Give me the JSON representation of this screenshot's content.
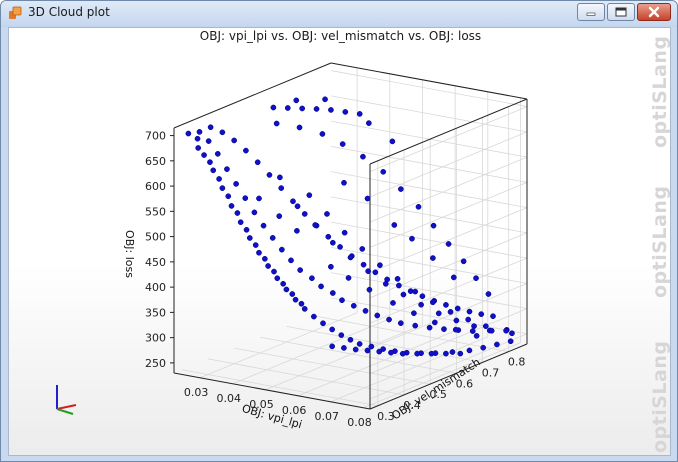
{
  "window": {
    "title": "3D Cloud plot",
    "accent_color": "#c9daf0",
    "icon": "app-orange-icon"
  },
  "controls": {
    "minimize_icon": "minimize-icon",
    "maximize_icon": "maximize-icon",
    "close_icon": "close-icon"
  },
  "watermark": "optiSLang",
  "chart_data": {
    "type": "scatter3d",
    "title": "OBJ: vpi_lpi vs. OBJ: vel_mismatch vs. OBJ: loss",
    "xlabel": "OBJ: vpi_lpi",
    "ylabel": "OBJ: vel_mismatch",
    "zlabel": "OBJ: loss",
    "x_ticks": [
      "0.03",
      "0.04",
      "0.05",
      "0.06",
      "0.07",
      "0.08"
    ],
    "y_ticks": [
      "0.3",
      "0.4",
      "0.5",
      "0.6",
      "0.7",
      "0.8"
    ],
    "z_ticks": [
      "250",
      "300",
      "350",
      "400",
      "450",
      "500",
      "550",
      "600",
      "650",
      "700"
    ],
    "xlim": [
      0.022,
      0.082
    ],
    "ylim": [
      0.27,
      0.87
    ],
    "zlim": [
      230,
      715
    ],
    "grid": true,
    "marker_color": "#1010c8",
    "points": [
      [
        0.024,
        0.3,
        700
      ],
      [
        0.026,
        0.31,
        690
      ],
      [
        0.027,
        0.3,
        675
      ],
      [
        0.028,
        0.31,
        660
      ],
      [
        0.029,
        0.32,
        645
      ],
      [
        0.03,
        0.32,
        630
      ],
      [
        0.031,
        0.33,
        612
      ],
      [
        0.032,
        0.33,
        595
      ],
      [
        0.033,
        0.34,
        578
      ],
      [
        0.034,
        0.34,
        560
      ],
      [
        0.035,
        0.35,
        545
      ],
      [
        0.036,
        0.35,
        528
      ],
      [
        0.037,
        0.36,
        512
      ],
      [
        0.038,
        0.36,
        497
      ],
      [
        0.039,
        0.37,
        482
      ],
      [
        0.04,
        0.37,
        468
      ],
      [
        0.041,
        0.38,
        455
      ],
      [
        0.042,
        0.38,
        442
      ],
      [
        0.043,
        0.39,
        430
      ],
      [
        0.044,
        0.39,
        418
      ],
      [
        0.045,
        0.4,
        406
      ],
      [
        0.046,
        0.4,
        396
      ],
      [
        0.047,
        0.41,
        386
      ],
      [
        0.048,
        0.41,
        376
      ],
      [
        0.049,
        0.42,
        367
      ],
      [
        0.05,
        0.42,
        358
      ],
      [
        0.052,
        0.43,
        343
      ],
      [
        0.054,
        0.44,
        330
      ],
      [
        0.056,
        0.45,
        318
      ],
      [
        0.058,
        0.46,
        307
      ],
      [
        0.06,
        0.47,
        298
      ],
      [
        0.062,
        0.48,
        290
      ],
      [
        0.064,
        0.5,
        283
      ],
      [
        0.066,
        0.52,
        276
      ],
      [
        0.068,
        0.54,
        270
      ],
      [
        0.07,
        0.56,
        265
      ],
      [
        0.072,
        0.59,
        260
      ],
      [
        0.074,
        0.62,
        256
      ],
      [
        0.076,
        0.66,
        252
      ],
      [
        0.078,
        0.7,
        249
      ],
      [
        0.079,
        0.74,
        247
      ],
      [
        0.08,
        0.78,
        246
      ],
      [
        0.081,
        0.82,
        245
      ],
      [
        0.025,
        0.33,
        698
      ],
      [
        0.027,
        0.34,
        680
      ],
      [
        0.029,
        0.35,
        655
      ],
      [
        0.031,
        0.36,
        625
      ],
      [
        0.033,
        0.37,
        596
      ],
      [
        0.035,
        0.38,
        568
      ],
      [
        0.037,
        0.39,
        540
      ],
      [
        0.039,
        0.4,
        514
      ],
      [
        0.041,
        0.41,
        490
      ],
      [
        0.043,
        0.42,
        467
      ],
      [
        0.045,
        0.43,
        446
      ],
      [
        0.047,
        0.44,
        427
      ],
      [
        0.049,
        0.46,
        409
      ],
      [
        0.051,
        0.47,
        393
      ],
      [
        0.053,
        0.49,
        378
      ],
      [
        0.055,
        0.5,
        364
      ],
      [
        0.057,
        0.52,
        351
      ],
      [
        0.059,
        0.54,
        339
      ],
      [
        0.061,
        0.56,
        328
      ],
      [
        0.063,
        0.58,
        318
      ],
      [
        0.065,
        0.6,
        309
      ],
      [
        0.067,
        0.63,
        300
      ],
      [
        0.069,
        0.66,
        292
      ],
      [
        0.071,
        0.69,
        285
      ],
      [
        0.073,
        0.72,
        279
      ],
      [
        0.075,
        0.75,
        273
      ],
      [
        0.077,
        0.79,
        268
      ],
      [
        0.079,
        0.83,
        263
      ],
      [
        0.026,
        0.36,
        702
      ],
      [
        0.028,
        0.38,
        690
      ],
      [
        0.03,
        0.4,
        672
      ],
      [
        0.032,
        0.42,
        650
      ],
      [
        0.034,
        0.44,
        625
      ],
      [
        0.036,
        0.46,
        598
      ],
      [
        0.038,
        0.48,
        570
      ],
      [
        0.04,
        0.5,
        542
      ],
      [
        0.042,
        0.52,
        515
      ],
      [
        0.044,
        0.54,
        490
      ],
      [
        0.046,
        0.56,
        466
      ],
      [
        0.048,
        0.58,
        444
      ],
      [
        0.05,
        0.6,
        424
      ],
      [
        0.052,
        0.62,
        405
      ],
      [
        0.054,
        0.64,
        388
      ],
      [
        0.056,
        0.66,
        372
      ],
      [
        0.058,
        0.68,
        358
      ],
      [
        0.06,
        0.7,
        345
      ],
      [
        0.062,
        0.72,
        333
      ],
      [
        0.064,
        0.74,
        322
      ],
      [
        0.066,
        0.76,
        312
      ],
      [
        0.068,
        0.78,
        303
      ],
      [
        0.07,
        0.8,
        295
      ],
      [
        0.072,
        0.82,
        288
      ],
      [
        0.074,
        0.84,
        282
      ],
      [
        0.03,
        0.55,
        705
      ],
      [
        0.032,
        0.58,
        700
      ],
      [
        0.034,
        0.61,
        695
      ],
      [
        0.036,
        0.64,
        690
      ],
      [
        0.038,
        0.67,
        684
      ],
      [
        0.04,
        0.7,
        676
      ],
      [
        0.042,
        0.73,
        668
      ],
      [
        0.035,
        0.5,
        690
      ],
      [
        0.038,
        0.55,
        675
      ],
      [
        0.041,
        0.6,
        655
      ],
      [
        0.044,
        0.64,
        630
      ],
      [
        0.047,
        0.68,
        600
      ],
      [
        0.05,
        0.72,
        565
      ],
      [
        0.053,
        0.75,
        528
      ],
      [
        0.056,
        0.78,
        490
      ],
      [
        0.059,
        0.8,
        452
      ],
      [
        0.062,
        0.82,
        415
      ],
      [
        0.065,
        0.84,
        380
      ],
      [
        0.068,
        0.85,
        348
      ],
      [
        0.071,
        0.86,
        318
      ],
      [
        0.045,
        0.5,
        560
      ],
      [
        0.048,
        0.53,
        520
      ],
      [
        0.051,
        0.56,
        480
      ],
      [
        0.054,
        0.59,
        445
      ],
      [
        0.057,
        0.62,
        410
      ],
      [
        0.06,
        0.65,
        380
      ],
      [
        0.063,
        0.68,
        352
      ],
      [
        0.066,
        0.71,
        328
      ],
      [
        0.069,
        0.74,
        306
      ],
      [
        0.072,
        0.77,
        288
      ],
      [
        0.075,
        0.8,
        272
      ],
      [
        0.078,
        0.84,
        258
      ],
      [
        0.04,
        0.45,
        600
      ],
      [
        0.043,
        0.48,
        540
      ],
      [
        0.046,
        0.51,
        500
      ],
      [
        0.049,
        0.54,
        462
      ],
      [
        0.052,
        0.57,
        430
      ],
      [
        0.055,
        0.6,
        400
      ],
      [
        0.058,
        0.63,
        372
      ],
      [
        0.061,
        0.66,
        348
      ],
      [
        0.064,
        0.69,
        325
      ],
      [
        0.067,
        0.72,
        305
      ],
      [
        0.07,
        0.75,
        288
      ],
      [
        0.073,
        0.78,
        274
      ],
      [
        0.076,
        0.81,
        262
      ],
      [
        0.079,
        0.85,
        252
      ],
      [
        0.06,
        0.4,
        300
      ],
      [
        0.062,
        0.42,
        295
      ],
      [
        0.064,
        0.44,
        290
      ],
      [
        0.066,
        0.46,
        286
      ],
      [
        0.068,
        0.48,
        282
      ],
      [
        0.07,
        0.5,
        278
      ],
      [
        0.072,
        0.52,
        274
      ],
      [
        0.074,
        0.55,
        270
      ],
      [
        0.076,
        0.58,
        266
      ],
      [
        0.078,
        0.61,
        262
      ],
      [
        0.08,
        0.64,
        258
      ],
      [
        0.033,
        0.6,
        712
      ],
      [
        0.037,
        0.66,
        706
      ],
      [
        0.044,
        0.74,
        650
      ],
      [
        0.048,
        0.78,
        610
      ],
      [
        0.046,
        0.62,
        560
      ],
      [
        0.05,
        0.66,
        525
      ],
      [
        0.055,
        0.7,
        470
      ],
      [
        0.058,
        0.73,
        440
      ],
      [
        0.062,
        0.76,
        400
      ],
      [
        0.066,
        0.79,
        360
      ],
      [
        0.036,
        0.42,
        560
      ],
      [
        0.039,
        0.46,
        520
      ],
      [
        0.042,
        0.49,
        488
      ],
      [
        0.05,
        0.52,
        420
      ],
      [
        0.053,
        0.55,
        395
      ],
      [
        0.057,
        0.58,
        370
      ],
      [
        0.061,
        0.62,
        340
      ],
      [
        0.065,
        0.65,
        318
      ],
      [
        0.069,
        0.68,
        298
      ],
      [
        0.073,
        0.71,
        282
      ],
      [
        0.077,
        0.74,
        268
      ]
    ]
  }
}
